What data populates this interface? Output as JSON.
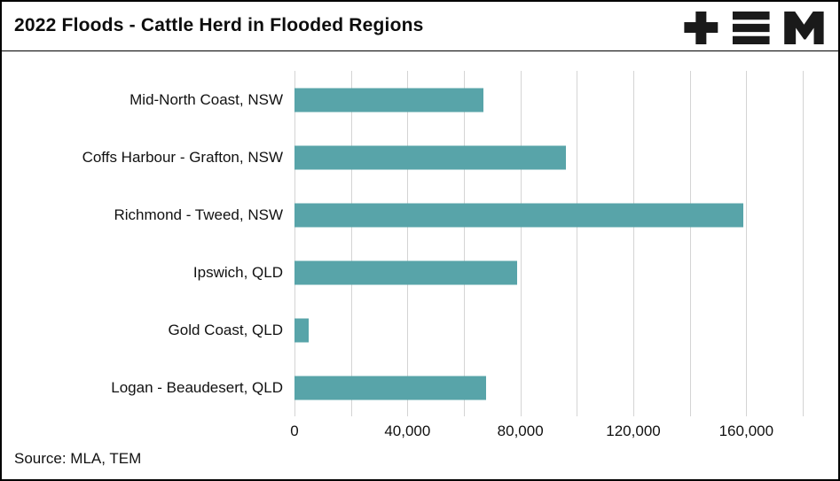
{
  "header": {
    "title": "2022 Floods - Cattle Herd in Flooded Regions",
    "logo": "TEM"
  },
  "footer": {
    "source": "Source: MLA, TEM"
  },
  "chart_data": {
    "type": "bar",
    "orientation": "horizontal",
    "title": "2022 Floods - Cattle Herd in Flooded Regions",
    "categories": [
      "Mid-North Coast, NSW",
      "Coffs Harbour - Grafton, NSW",
      "Richmond - Tweed, NSW",
      "Ipswich, QLD",
      "Gold Coast, QLD",
      "Logan - Beaudesert, QLD"
    ],
    "values": [
      67000,
      96000,
      159000,
      79000,
      5000,
      68000
    ],
    "xlabel": "",
    "ylabel": "",
    "xlim": [
      0,
      180000
    ],
    "xticks": [
      0,
      40000,
      80000,
      120000,
      160000
    ],
    "xtick_labels": [
      "0",
      "40,000",
      "80,000",
      "120,000",
      "160,000"
    ],
    "gridline_interval": 20000,
    "grid": true,
    "legend": false,
    "bar_color": "#58a4a9"
  },
  "colors": {
    "bar": "#58a4a9",
    "gridline": "#d4d4d4",
    "text": "#111111",
    "logo": "#1a1a1a"
  }
}
